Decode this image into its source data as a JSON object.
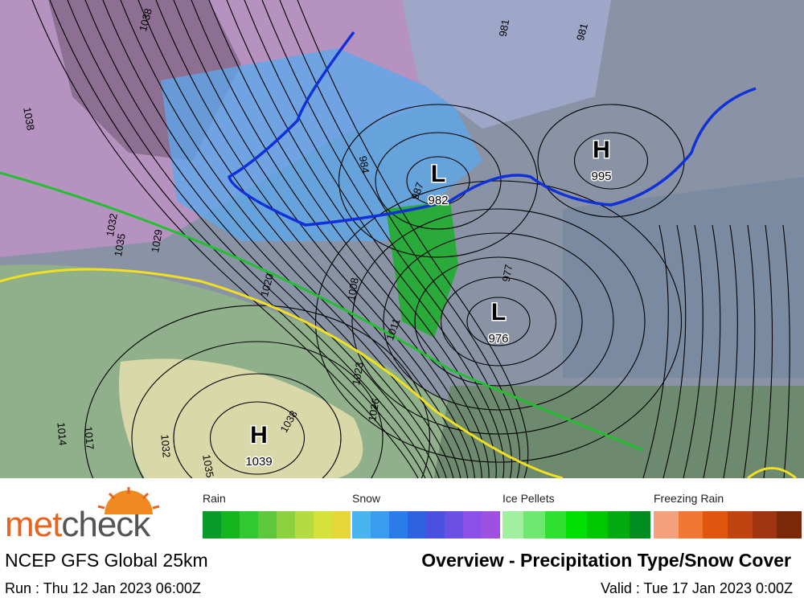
{
  "map": {
    "pressure_centers": [
      {
        "symbol": "H",
        "pressure": 995
      },
      {
        "symbol": "L",
        "pressure": 982
      },
      {
        "symbol": "L",
        "pressure": 976
      },
      {
        "symbol": "H",
        "pressure": 1039
      }
    ],
    "isobar_labels": [
      1038,
      1038,
      1035,
      1032,
      1029,
      1020,
      1008,
      1011,
      1023,
      1026,
      1038,
      1032,
      1035,
      1017,
      1014,
      984,
      987,
      981,
      981,
      977
    ]
  },
  "legend": {
    "groups": [
      {
        "label": "Rain",
        "colors": [
          "#0a9a2a",
          "#14b41e",
          "#32c832",
          "#5ec83c",
          "#8cd240",
          "#b4dc40",
          "#d6e23c",
          "#e6d638"
        ]
      },
      {
        "label": "Snow",
        "colors": [
          "#48b4f0",
          "#3a9cf0",
          "#2a7ce8",
          "#2e62e0",
          "#4a50e0",
          "#6a50e4",
          "#8a50e8",
          "#a050e0"
        ]
      },
      {
        "label": "Ice Pellets",
        "colors": [
          "#a0f0a0",
          "#6ee86e",
          "#30e030",
          "#00e000",
          "#00c800",
          "#00aa10",
          "#008c20"
        ]
      },
      {
        "label": "Freezing Rain",
        "colors": [
          "#f4a07c",
          "#f07834",
          "#e0560e",
          "#c04410",
          "#a03410",
          "#7a2808"
        ]
      }
    ]
  },
  "footer": {
    "logo": {
      "part1": "met",
      "part2": "check"
    },
    "model": "NCEP GFS Global 25km",
    "product": "Overview - Precipitation Type/Snow Cover",
    "run": "Run : Thu 12 Jan 2023 06:00Z",
    "valid": "Valid : Tue 17 Jan 2023 0:00Z"
  }
}
